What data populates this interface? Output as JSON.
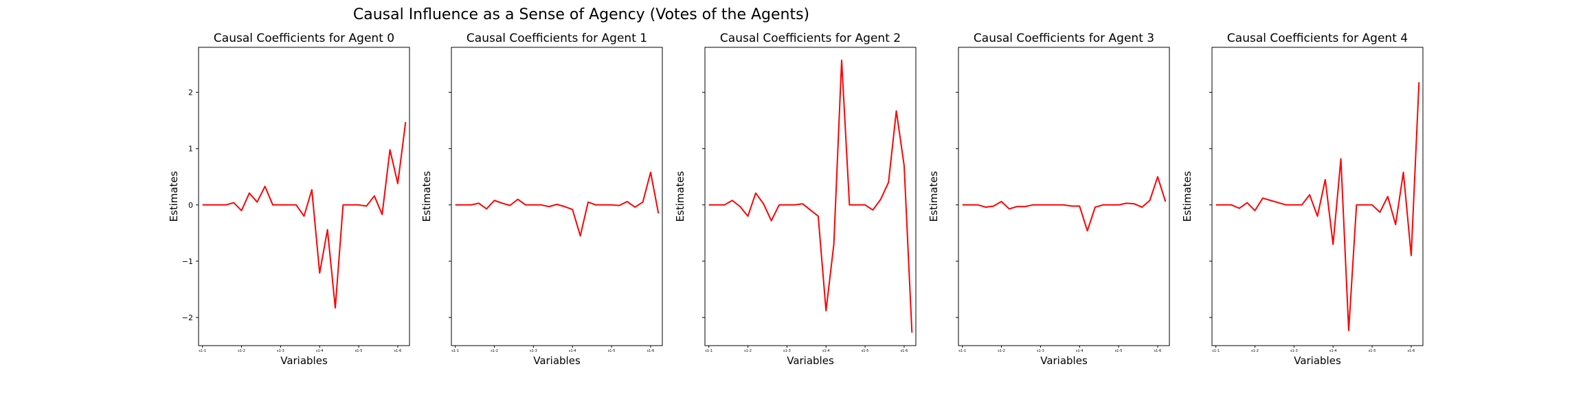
{
  "figure": {
    "title": "Causal Influence as a Sense of Agency (Votes of the Agents)"
  },
  "colors": {
    "line": "#ff0000",
    "axes": "#000000",
    "background": "#ffffff"
  },
  "chart_data": [
    {
      "type": "line",
      "title": "Causal Coefficients for Agent 0",
      "xlabel": "Variables",
      "ylabel": "Estimates",
      "ylim": [
        -2.5,
        2.8
      ],
      "yticks": [
        -2,
        -1,
        0,
        1,
        2
      ],
      "show_ytick_labels": true,
      "xticks": [
        {
          "x": 0,
          "label": "s1-1"
        },
        {
          "x": 5,
          "label": "s1-2"
        },
        {
          "x": 10,
          "label": "s1-3"
        },
        {
          "x": 15,
          "label": "s1-4"
        },
        {
          "x": 20,
          "label": "s1-5"
        },
        {
          "x": 25,
          "label": "s1-6"
        }
      ],
      "xlim": [
        -0.5,
        26.5
      ],
      "grid": false,
      "series": [
        {
          "values": [
            0,
            0,
            0,
            0,
            0.04,
            -0.1,
            0.21,
            0.05,
            0.33,
            0,
            0,
            0,
            0,
            -0.2,
            0.27,
            -1.21,
            -0.44,
            -1.83,
            0,
            0,
            0,
            -0.02,
            0.16,
            -0.17,
            0.98,
            0.38,
            1.47
          ]
        }
      ]
    },
    {
      "type": "line",
      "title": "Causal Coefficients for Agent 1",
      "xlabel": "Variables",
      "ylabel": "Estimates",
      "ylim": [
        -2.5,
        2.8
      ],
      "yticks": [
        -2,
        -1,
        0,
        1,
        2
      ],
      "show_ytick_labels": false,
      "xticks": [
        {
          "x": 0,
          "label": "s1-1"
        },
        {
          "x": 5,
          "label": "s1-2"
        },
        {
          "x": 10,
          "label": "s1-3"
        },
        {
          "x": 15,
          "label": "s1-4"
        },
        {
          "x": 20,
          "label": "s1-5"
        },
        {
          "x": 25,
          "label": "s1-6"
        }
      ],
      "xlim": [
        -0.5,
        26.5
      ],
      "grid": false,
      "series": [
        {
          "values": [
            0,
            0,
            0,
            0.03,
            -0.07,
            0.08,
            0.03,
            -0.01,
            0.1,
            0,
            0,
            0,
            -0.03,
            0.01,
            -0.03,
            -0.08,
            -0.55,
            0.05,
            0,
            0,
            0,
            -0.01,
            0.06,
            -0.04,
            0.05,
            0.58,
            -0.15
          ]
        }
      ]
    },
    {
      "type": "line",
      "title": "Causal Coefficients for Agent 2",
      "xlabel": "Variables",
      "ylabel": "Estimates",
      "ylim": [
        -2.5,
        2.8
      ],
      "yticks": [
        -2,
        -1,
        0,
        1,
        2
      ],
      "show_ytick_labels": false,
      "xticks": [
        {
          "x": 0,
          "label": "s1-1"
        },
        {
          "x": 5,
          "label": "s1-2"
        },
        {
          "x": 10,
          "label": "s1-3"
        },
        {
          "x": 15,
          "label": "s1-4"
        },
        {
          "x": 20,
          "label": "s1-5"
        },
        {
          "x": 25,
          "label": "s1-6"
        }
      ],
      "xlim": [
        -0.5,
        26.5
      ],
      "grid": false,
      "series": [
        {
          "values": [
            0,
            0,
            0,
            0.08,
            -0.03,
            -0.2,
            0.21,
            0.02,
            -0.28,
            0,
            0,
            0,
            0.02,
            -0.09,
            -0.2,
            -1.88,
            -0.7,
            2.57,
            0,
            0,
            0,
            -0.09,
            0.1,
            0.4,
            1.67,
            0.7,
            -2.27
          ]
        }
      ]
    },
    {
      "type": "line",
      "title": "Causal Coefficients for Agent 3",
      "xlabel": "Variables",
      "ylabel": "Estimates",
      "ylim": [
        -2.5,
        2.8
      ],
      "yticks": [
        -2,
        -1,
        0,
        1,
        2
      ],
      "show_ytick_labels": false,
      "xticks": [
        {
          "x": 0,
          "label": "s1-1"
        },
        {
          "x": 5,
          "label": "s1-2"
        },
        {
          "x": 10,
          "label": "s1-3"
        },
        {
          "x": 15,
          "label": "s1-4"
        },
        {
          "x": 20,
          "label": "s1-5"
        },
        {
          "x": 25,
          "label": "s1-6"
        }
      ],
      "xlim": [
        -0.5,
        26.5
      ],
      "grid": false,
      "series": [
        {
          "values": [
            0,
            0,
            0,
            -0.04,
            -0.02,
            0.06,
            -0.07,
            -0.03,
            -0.03,
            0,
            0,
            0,
            0,
            0,
            -0.02,
            -0.02,
            -0.46,
            -0.04,
            0,
            0,
            0,
            0.03,
            0.02,
            -0.04,
            0.08,
            0.5,
            0.06
          ]
        }
      ]
    },
    {
      "type": "line",
      "title": "Causal Coefficients for Agent 4",
      "xlabel": "Variables",
      "ylabel": "Estimates",
      "ylim": [
        -2.5,
        2.8
      ],
      "yticks": [
        -2,
        -1,
        0,
        1,
        2
      ],
      "show_ytick_labels": false,
      "xticks": [
        {
          "x": 0,
          "label": "s1-1"
        },
        {
          "x": 5,
          "label": "s1-2"
        },
        {
          "x": 10,
          "label": "s1-3"
        },
        {
          "x": 15,
          "label": "s1-4"
        },
        {
          "x": 20,
          "label": "s1-5"
        },
        {
          "x": 25,
          "label": "s1-6"
        }
      ],
      "xlim": [
        -0.5,
        26.5
      ],
      "grid": false,
      "series": [
        {
          "values": [
            0,
            0,
            0,
            -0.06,
            0.04,
            -0.1,
            0.12,
            0.08,
            0.04,
            0,
            0,
            0,
            0.18,
            -0.2,
            0.45,
            -0.7,
            0.82,
            -2.23,
            0,
            0,
            0,
            -0.13,
            0.15,
            -0.35,
            0.58,
            -0.9,
            2.18
          ]
        }
      ]
    }
  ]
}
